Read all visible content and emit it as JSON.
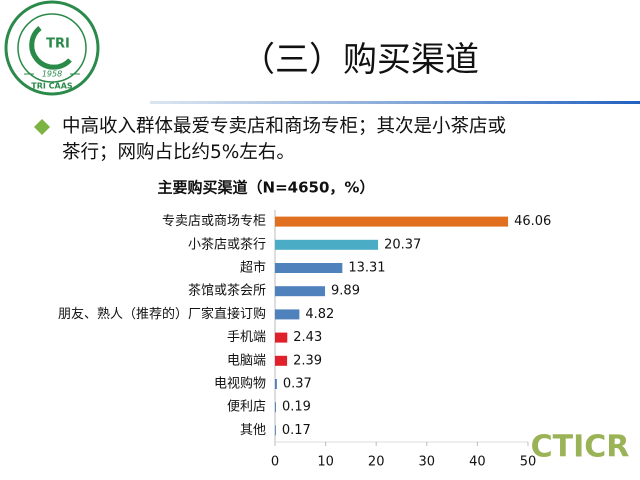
{
  "slide": {
    "title": "（三）购买渠道",
    "bullet": [
      "中高收入群体最爱专卖店和商场专柜；其次是小茶店或",
      "茶行；网购占比约5%左右。"
    ],
    "logo": {
      "center": "TRI",
      "year": "1958",
      "bottom": "TRI CAAS"
    },
    "watermark": "CTICR"
  },
  "chart_data": {
    "type": "hbar",
    "title": "主要购买渠道（N=4650，%）",
    "categories": [
      "专卖店或商场专柜",
      "小茶店或茶行",
      "超市",
      "茶馆或茶会所",
      "朋友、熟人（推荐的）厂家直接订购",
      "手机端",
      "电脑端",
      "电视购物",
      "便利店",
      "其他"
    ],
    "values": [
      46.06,
      20.37,
      13.31,
      9.89,
      4.82,
      2.43,
      2.39,
      0.37,
      0.19,
      0.17
    ],
    "colors": [
      "#e07020",
      "#4bacc6",
      "#4f81bd",
      "#4f81bd",
      "#4f81bd",
      "#e0202a",
      "#e0202a",
      "#4f81bd",
      "#4f81bd",
      "#4f81bd"
    ],
    "xlim": [
      0,
      50
    ],
    "xticks": [
      0,
      10,
      20,
      30,
      40,
      50
    ]
  }
}
